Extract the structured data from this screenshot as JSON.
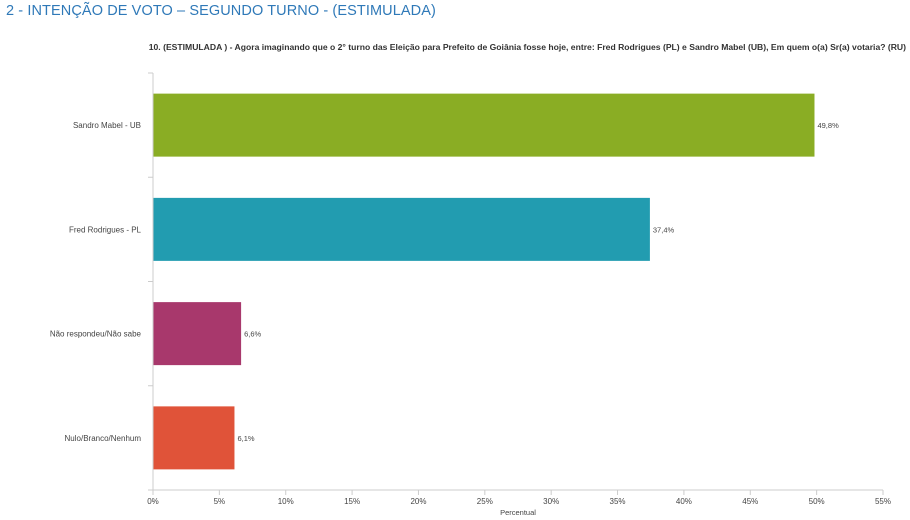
{
  "page_title": "2 - INTENÇÃO DE VOTO – SEGUNDO TURNO  -  (ESTIMULADA)",
  "colors": {
    "title": "#2f79b8",
    "bar_sandro": "#8aad24",
    "bar_fred": "#229cb0",
    "bar_nao_respondeu": "#a8386c",
    "bar_nulo": "#e05339",
    "axis": "#cccccc",
    "text": "#444444"
  },
  "chart_data": {
    "type": "bar",
    "orientation": "horizontal",
    "title": "10. (ESTIMULADA ) - Agora imaginando que o 2° turno das Eleição para Prefeito de Goiânia fosse hoje, entre: Fred Rodrigues (PL) e Sandro Mabel (UB), Em quem o(a) Sr(a) votaria? (RU)",
    "categories": [
      "Sandro Mabel - UB",
      "Fred Rodrigues - PL",
      "Não respondeu/Não sabe",
      "Nulo/Branco/Nenhum"
    ],
    "values": [
      49.8,
      37.4,
      6.6,
      6.1
    ],
    "data_labels": [
      "49,8%",
      "37,4%",
      "6,6%",
      "6,1%"
    ],
    "bar_colors": [
      "#8aad24",
      "#229cb0",
      "#a8386c",
      "#e05339"
    ],
    "xlabel": "Percentual",
    "ylabel": "",
    "xlim": [
      0,
      55
    ],
    "xticks": [
      0,
      5,
      10,
      15,
      20,
      25,
      30,
      35,
      40,
      45,
      50,
      55
    ],
    "xtick_labels": [
      "0%",
      "5%",
      "10%",
      "15%",
      "20%",
      "25%",
      "30%",
      "35%",
      "40%",
      "45%",
      "50%",
      "55%"
    ],
    "grid": false,
    "legend": "none"
  }
}
